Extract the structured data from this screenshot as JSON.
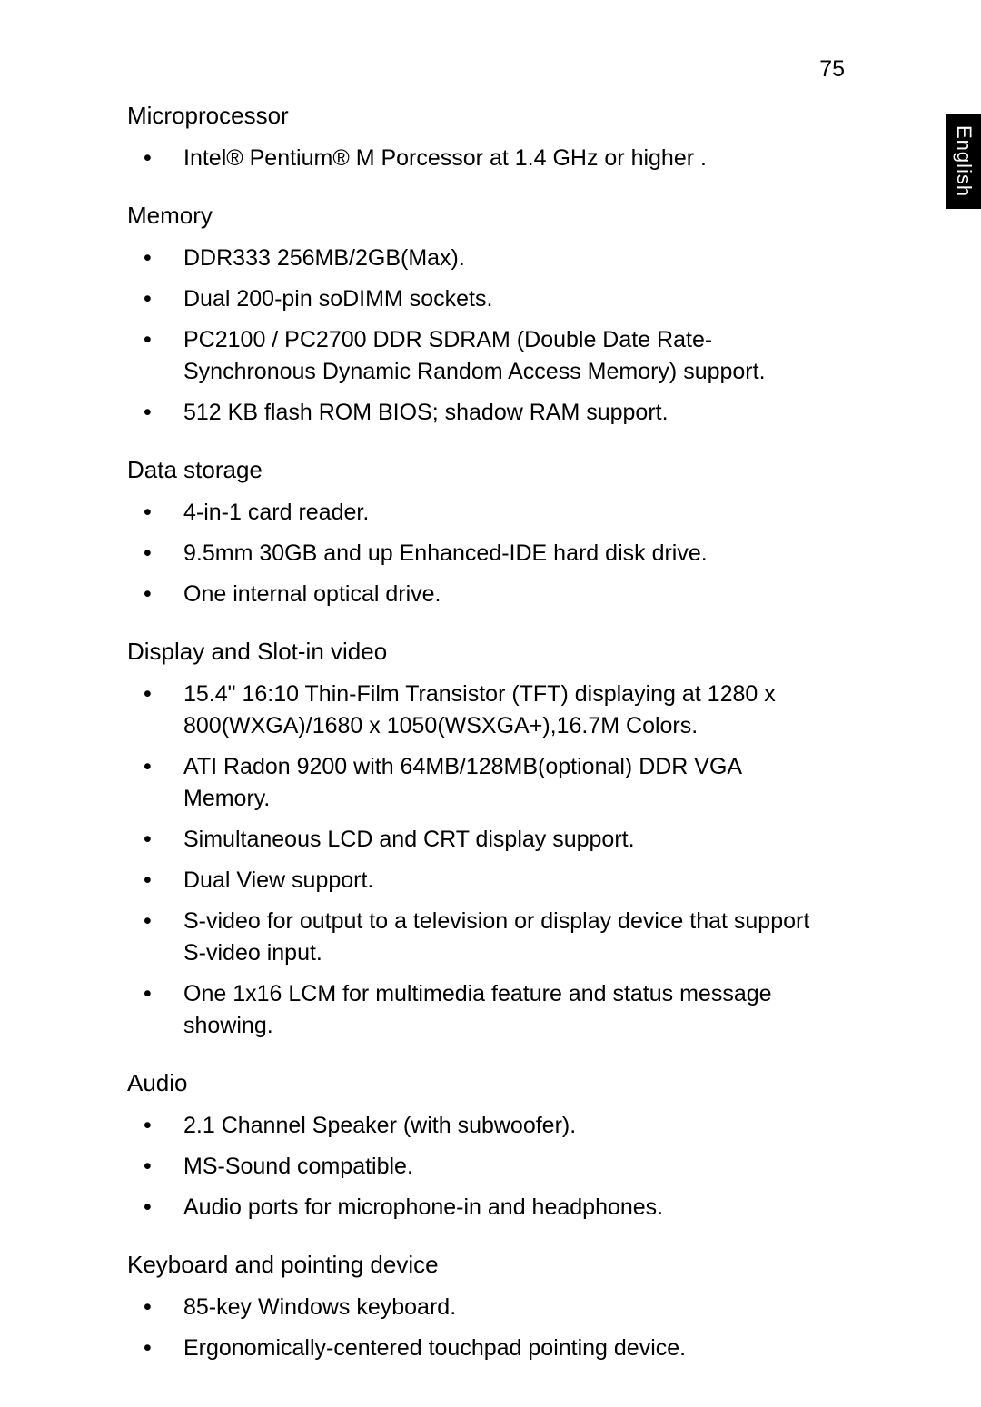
{
  "page_number": "75",
  "language_tab": "English",
  "typography": {
    "body_font_family": "Segoe UI / Helvetica Neue / Arial",
    "heading_fontsize_pt": 19,
    "body_fontsize_pt": 18,
    "page_number_fontsize_pt": 18,
    "tab_fontsize_pt": 16,
    "text_color": "#000000",
    "background_color": "#ffffff",
    "tab_background": "#000000",
    "tab_text_color": "#ffffff"
  },
  "sections": [
    {
      "heading": "Microprocessor",
      "items": [
        "Intel® Pentium®  M Porcessor at 1.4 GHz or higher ."
      ]
    },
    {
      "heading": "Memory",
      "items": [
        "DDR333 256MB/2GB(Max).",
        "Dual 200-pin soDIMM sockets.",
        "PC2100 / PC2700 DDR SDRAM (Double Date Rate-Synchronous Dynamic Random Access Memory) support.",
        "512 KB flash ROM BIOS; shadow RAM support."
      ]
    },
    {
      "heading": "Data storage",
      "items": [
        "4-in-1 card reader.",
        "9.5mm 30GB and up Enhanced-IDE hard disk drive.",
        "One internal optical drive."
      ]
    },
    {
      "heading": "Display and Slot-in video",
      "items": [
        "15.4\"  16:10 Thin-Film Transistor (TFT) displaying at 1280 x 800(WXGA)/1680 x 1050(WSXGA+),16.7M Colors.",
        "ATI Radon 9200 with 64MB/128MB(optional) DDR VGA Memory.",
        "Simultaneous LCD and CRT display support.",
        "Dual View support.",
        "S-video for output to a television or display device that support S-video input.",
        "One 1x16 LCM for multimedia feature and status message showing."
      ]
    },
    {
      "heading": "Audio",
      "items": [
        "2.1 Channel Speaker (with subwoofer).",
        "MS-Sound compatible.",
        "Audio ports for microphone-in and headphones."
      ]
    },
    {
      "heading": "Keyboard and pointing device",
      "items": [
        "85-key Windows keyboard.",
        "Ergonomically-centered touchpad pointing device."
      ]
    }
  ]
}
